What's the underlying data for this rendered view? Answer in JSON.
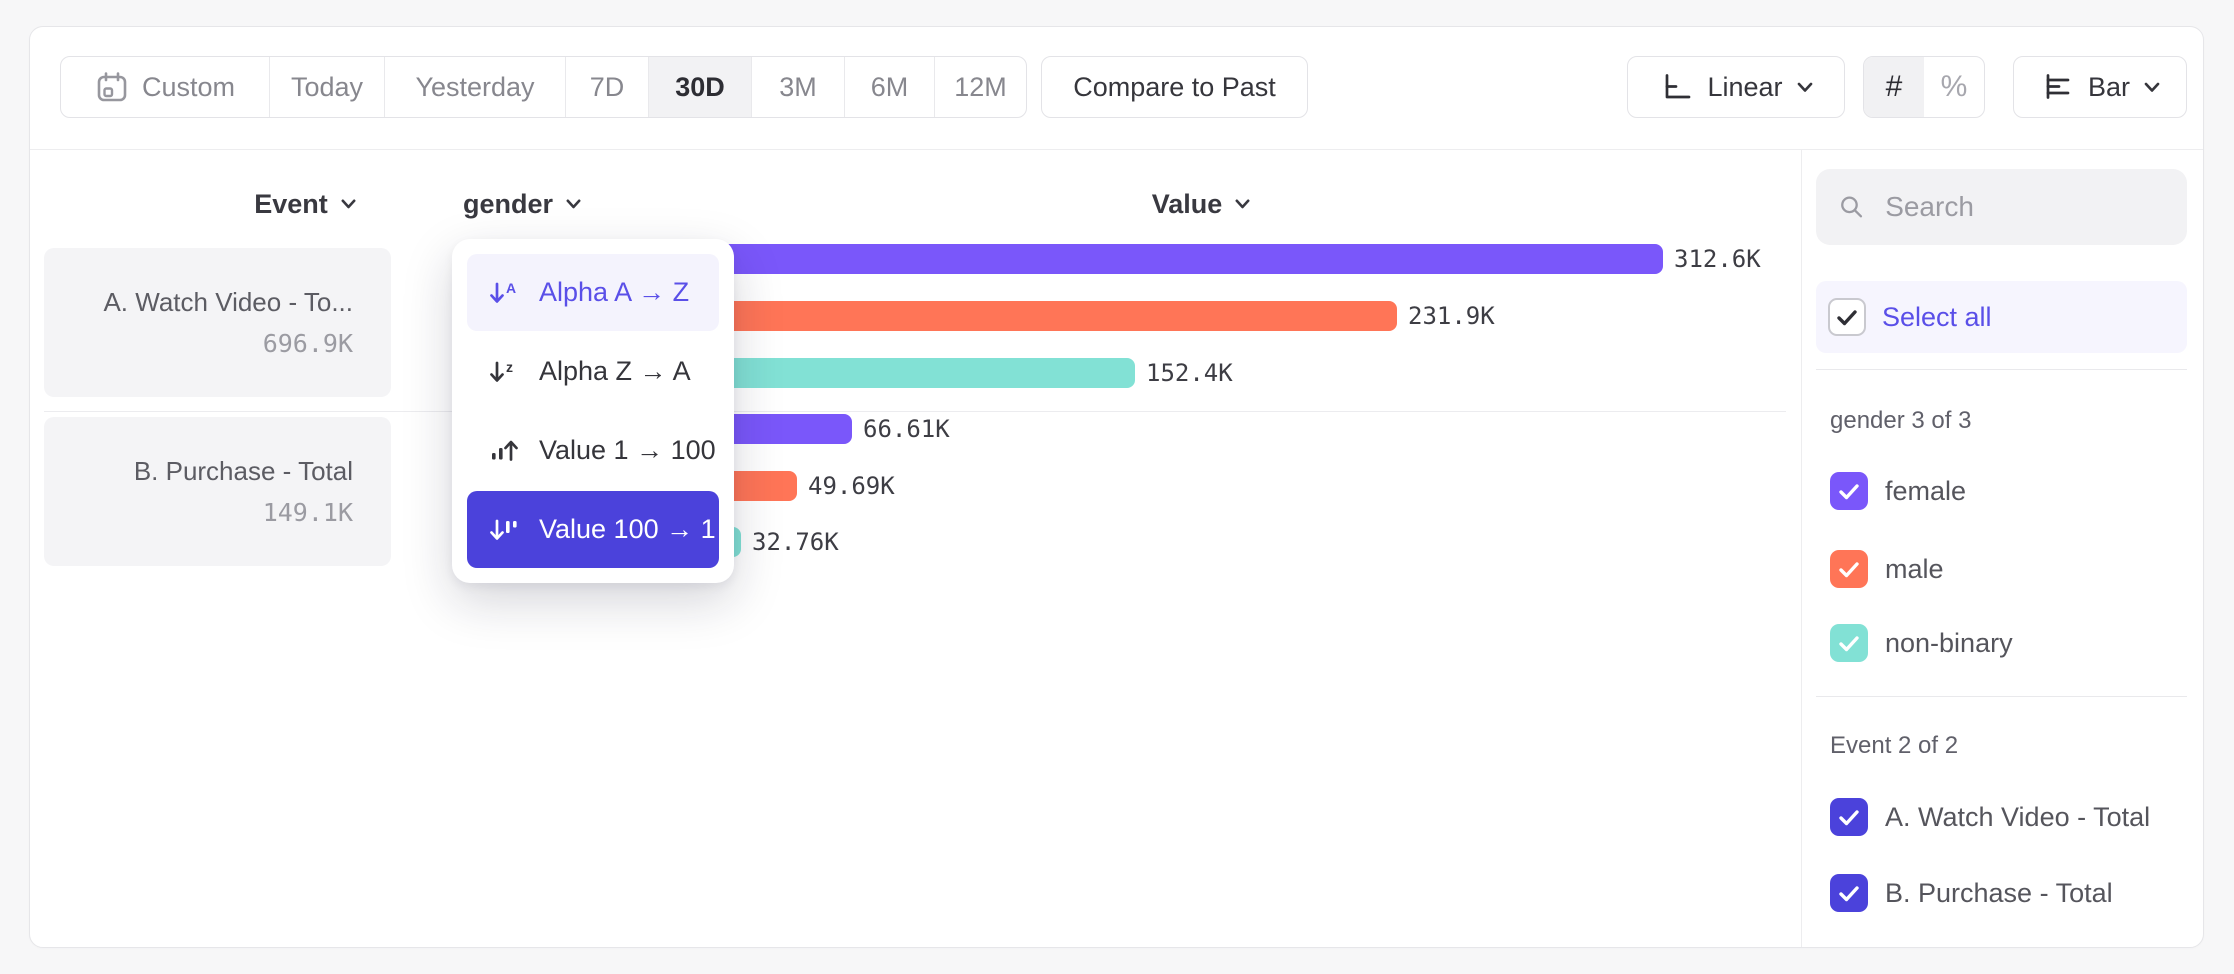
{
  "toolbar": {
    "date_ranges": [
      {
        "label": "Custom",
        "selected": false
      },
      {
        "label": "Today",
        "selected": false
      },
      {
        "label": "Yesterday",
        "selected": false
      },
      {
        "label": "7D",
        "selected": false
      },
      {
        "label": "30D",
        "selected": true
      },
      {
        "label": "3M",
        "selected": false
      },
      {
        "label": "6M",
        "selected": false
      },
      {
        "label": "12M",
        "selected": false
      }
    ],
    "compare_button": "Compare to Past",
    "scale_selector": "Linear",
    "number_format": {
      "count": "#",
      "percent": "%",
      "active": "#"
    },
    "chart_type_selector": "Bar"
  },
  "table": {
    "event_header": "Event",
    "breakdown_header": "gender",
    "value_header": "Value"
  },
  "events": [
    {
      "name": "A. Watch Video - To...",
      "total": "696.9K"
    },
    {
      "name": "B. Purchase - Total",
      "total": "149.1K"
    }
  ],
  "sort_menu": {
    "items": [
      {
        "label": "Alpha A → Z",
        "state": "hovered"
      },
      {
        "label": "Alpha Z → A",
        "state": "normal"
      },
      {
        "label": "Value 1 → 100",
        "state": "normal"
      },
      {
        "label": "Value 100 → 1",
        "state": "selected"
      }
    ]
  },
  "chart_data": {
    "type": "bar",
    "orientation": "horizontal",
    "value_axis_label": "Value",
    "series_colors": {
      "female": "#7a57fa",
      "male": "#ff7557",
      "non-binary": "#82e1d5"
    },
    "groups": [
      {
        "event": "A. Watch Video - Total",
        "total_label": "696.9K",
        "bars": [
          {
            "category": "female",
            "value": 312600,
            "label": "312.6K"
          },
          {
            "category": "male",
            "value": 231900,
            "label": "231.9K"
          },
          {
            "category": "non-binary",
            "value": 152400,
            "label": "152.4K"
          }
        ]
      },
      {
        "event": "B. Purchase - Total",
        "total_label": "149.1K",
        "bars": [
          {
            "category": "female",
            "value": 66610,
            "label": "66.61K"
          },
          {
            "category": "male",
            "value": 49690,
            "label": "49.69K"
          },
          {
            "category": "non-binary",
            "value": 32760,
            "label": "32.76K"
          }
        ]
      }
    ]
  },
  "sidebar": {
    "search_placeholder": "Search",
    "select_all_label": "Select all",
    "gender_section": {
      "title": "gender 3 of 3",
      "options": [
        {
          "label": "female",
          "checked": true,
          "color": "#7a57fa"
        },
        {
          "label": "male",
          "checked": true,
          "color": "#ff7557"
        },
        {
          "label": "non-binary",
          "checked": true,
          "color": "#82e1d5"
        }
      ]
    },
    "event_section": {
      "title": "Event 2 of 2",
      "options": [
        {
          "label": "A. Watch Video - Total",
          "checked": true,
          "color": "#4b42db"
        },
        {
          "label": "B. Purchase - Total",
          "checked": true,
          "color": "#4b42db"
        }
      ]
    }
  },
  "colors": {
    "purple_bar": "#7a57fa",
    "orange_bar": "#ff7557",
    "teal_bar": "#82e1d5",
    "accent_selected": "#4b42db",
    "accent_text": "#5a4fe8"
  }
}
